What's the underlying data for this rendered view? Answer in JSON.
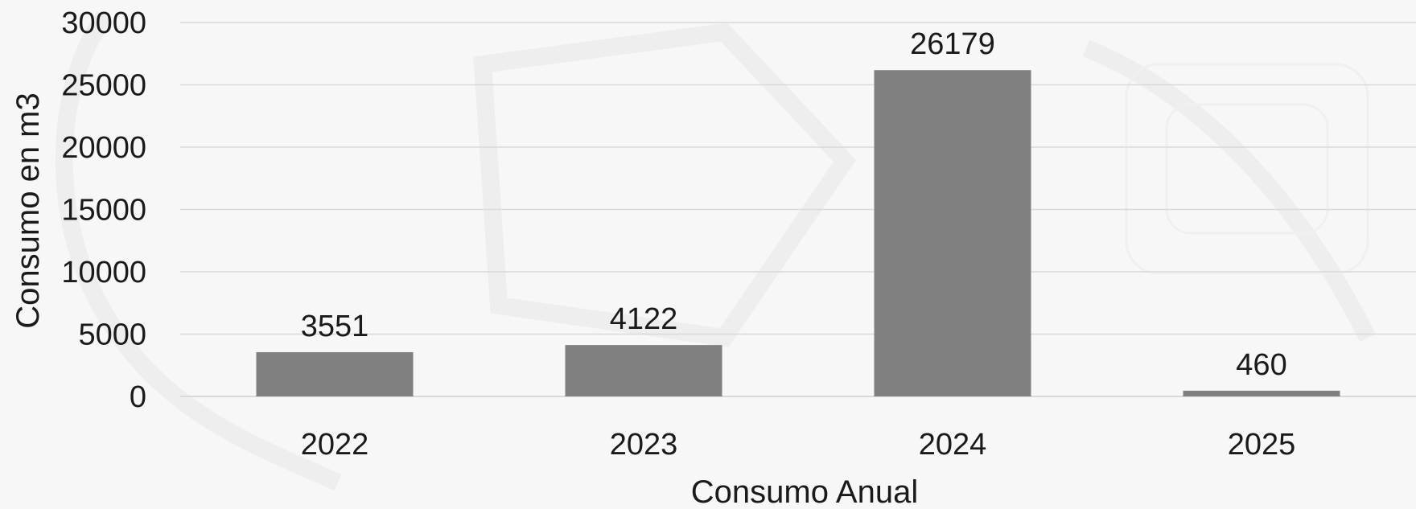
{
  "chart_data": {
    "type": "bar",
    "categories": [
      "2022",
      "2023",
      "2024",
      "2025"
    ],
    "values": [
      3551,
      4122,
      26179,
      460
    ],
    "data_labels": [
      "3551",
      "4122",
      "26179",
      "460"
    ],
    "ylim": [
      0,
      30000
    ],
    "yticks": [
      "0",
      "5000",
      "10000",
      "15000",
      "20000",
      "25000",
      "30000"
    ],
    "ytick_values": [
      0,
      5000,
      10000,
      15000,
      20000,
      25000,
      30000
    ],
    "xlabel": "Consumo Anual",
    "ylabel": "Consumo en m3",
    "grid": true,
    "legend": "none",
    "colors": {
      "bar": "#808080",
      "grid": "#d9d9d9",
      "text": "#1a1a1a"
    }
  }
}
